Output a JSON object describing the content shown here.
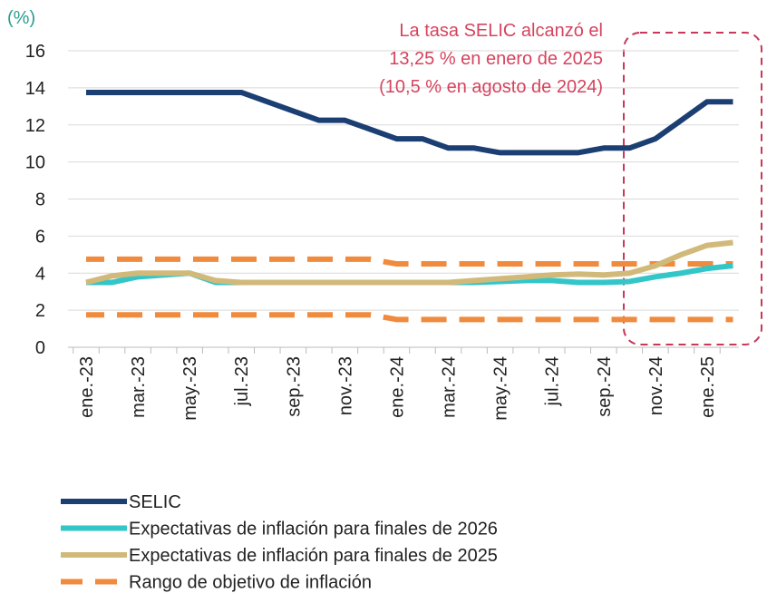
{
  "chart_data": {
    "type": "line",
    "y_unit_label": "(%)",
    "annotation": [
      "La tasa SELIC alcanzó el",
      "13,25 % en enero de 2025",
      "(10,5 % en agosto de 2024)"
    ],
    "annotation_color": "#d6435e",
    "categories": [
      "ene.-23",
      null,
      "mar.-23",
      null,
      "may.-23",
      null,
      "jul.-23",
      null,
      "sep.-23",
      null,
      "nov.-23",
      null,
      "ene.-24",
      null,
      "mar.-24",
      null,
      "may.-24",
      null,
      "jul.-24",
      null,
      "sep.-24",
      null,
      "nov.-24",
      null,
      "ene.-25",
      null
    ],
    "series": [
      {
        "name": "SELIC",
        "color": "#1b3f73",
        "width": 6,
        "values": [
          13.75,
          13.75,
          13.75,
          13.75,
          13.75,
          13.75,
          13.75,
          13.25,
          12.75,
          12.25,
          12.25,
          11.75,
          11.25,
          11.25,
          10.75,
          10.75,
          10.5,
          10.5,
          10.5,
          10.5,
          10.75,
          10.75,
          11.25,
          12.25,
          13.25,
          13.25
        ]
      },
      {
        "name": "Expectativas de inflación para finales de 2026",
        "color": "#33c6c9",
        "width": 6,
        "values": [
          3.5,
          3.5,
          3.8,
          3.9,
          4.0,
          3.5,
          3.5,
          3.5,
          3.5,
          3.5,
          3.5,
          3.5,
          3.5,
          3.5,
          3.5,
          3.5,
          3.55,
          3.6,
          3.6,
          3.5,
          3.5,
          3.55,
          3.8,
          4.0,
          4.25,
          4.4
        ]
      },
      {
        "name": "Expectativas de inflación para finales de 2025",
        "color": "#d1b97a",
        "width": 6,
        "values": [
          3.5,
          3.85,
          4.0,
          4.0,
          4.0,
          3.6,
          3.5,
          3.5,
          3.5,
          3.5,
          3.5,
          3.5,
          3.5,
          3.5,
          3.5,
          3.6,
          3.7,
          3.8,
          3.9,
          3.95,
          3.9,
          4.0,
          4.4,
          5.0,
          5.5,
          5.65
        ]
      },
      {
        "name": "Rango de objetivo de inflación",
        "color": "#f08a3c",
        "width": 6,
        "dashed": true,
        "values": [
          4.75,
          4.75,
          4.75,
          4.75,
          4.75,
          4.75,
          4.75,
          4.75,
          4.75,
          4.75,
          4.75,
          4.75,
          4.5,
          4.5,
          4.5,
          4.5,
          4.5,
          4.5,
          4.5,
          4.5,
          4.5,
          4.5,
          4.5,
          4.5,
          4.5,
          4.5
        ],
        "values_low": [
          1.75,
          1.75,
          1.75,
          1.75,
          1.75,
          1.75,
          1.75,
          1.75,
          1.75,
          1.75,
          1.75,
          1.75,
          1.5,
          1.5,
          1.5,
          1.5,
          1.5,
          1.5,
          1.5,
          1.5,
          1.5,
          1.5,
          1.5,
          1.5,
          1.5,
          1.5
        ]
      }
    ],
    "ylim": [
      0,
      16
    ],
    "yticks": [
      0,
      2,
      4,
      6,
      8,
      10,
      12,
      14,
      16
    ],
    "grid": true
  }
}
